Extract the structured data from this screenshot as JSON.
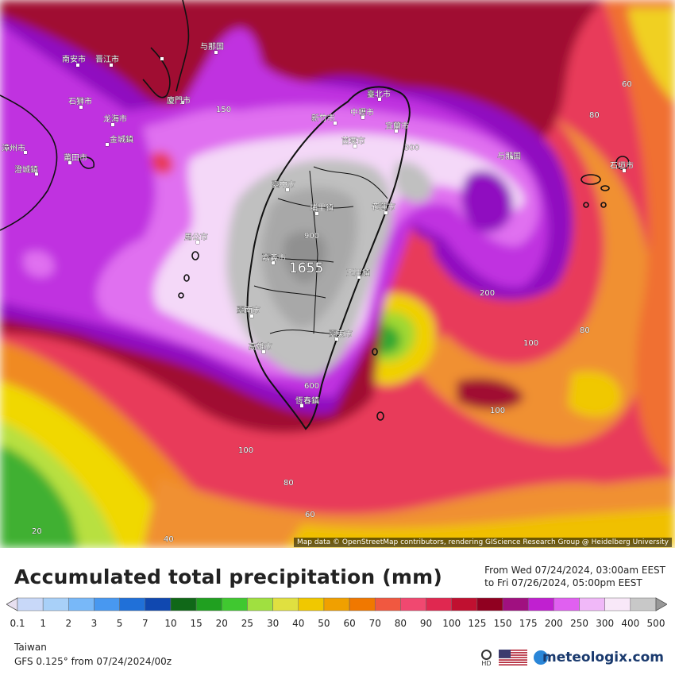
{
  "map": {
    "attribution": "Map data © OpenStreetMap contributors, rendering GIScience Research Group @ Heidelberg University",
    "peak_label": "1655",
    "contour_labels": [
      "900",
      "600",
      "300",
      "200",
      "150",
      "100",
      "100",
      "100",
      "80",
      "80",
      "80",
      "60",
      "60",
      "40",
      "20"
    ],
    "cities": [
      "臺北市",
      "新竹市",
      "中壢市",
      "宜蘭市",
      "苗栗市",
      "臺中市",
      "埔里鎮",
      "花蓮市",
      "嘉義市",
      "玉里鎮",
      "臺南市",
      "高雄市",
      "臺東市",
      "恆春鎮",
      "馬公市",
      "石垣市",
      "泉州市",
      "廈門市",
      "漳州市",
      "福清市",
      "永春县",
      "仙游县",
      "南安市",
      "晋江市",
      "石狮市",
      "龙海市",
      "金城鎮",
      "澄城鎮",
      "莆田市",
      "与那国"
    ]
  },
  "legend": {
    "title": "Accumulated total precipitation (mm)",
    "period_from": "From Wed 07/24/2024, 03:00am EEST",
    "period_to": "to Fri 07/26/2024, 05:00pm EEST",
    "ticks": [
      "0.1",
      "1",
      "2",
      "3",
      "5",
      "7",
      "10",
      "15",
      "20",
      "25",
      "30",
      "40",
      "50",
      "60",
      "70",
      "80",
      "90",
      "100",
      "125",
      "150",
      "175",
      "200",
      "250",
      "300",
      "400",
      "500"
    ],
    "colors": [
      "#e8e0f0",
      "#c8d8f8",
      "#a8d0f8",
      "#78b8f8",
      "#4898f0",
      "#2070d8",
      "#1048b0",
      "#106818",
      "#20a020",
      "#40c830",
      "#a0e040",
      "#e0e040",
      "#f0c800",
      "#f0a000",
      "#f07800",
      "#f05840",
      "#f04870",
      "#e02850",
      "#c01030",
      "#900020",
      "#a01080",
      "#c020d0",
      "#e060f0",
      "#f0b8f8",
      "#f8e8f8",
      "#c8c8c8",
      "#989898"
    ],
    "region": "Taiwan",
    "model": "GFS 0.125° from  07/24/2024/00z",
    "brand": "meteologix.com",
    "hd_label": "HD"
  }
}
